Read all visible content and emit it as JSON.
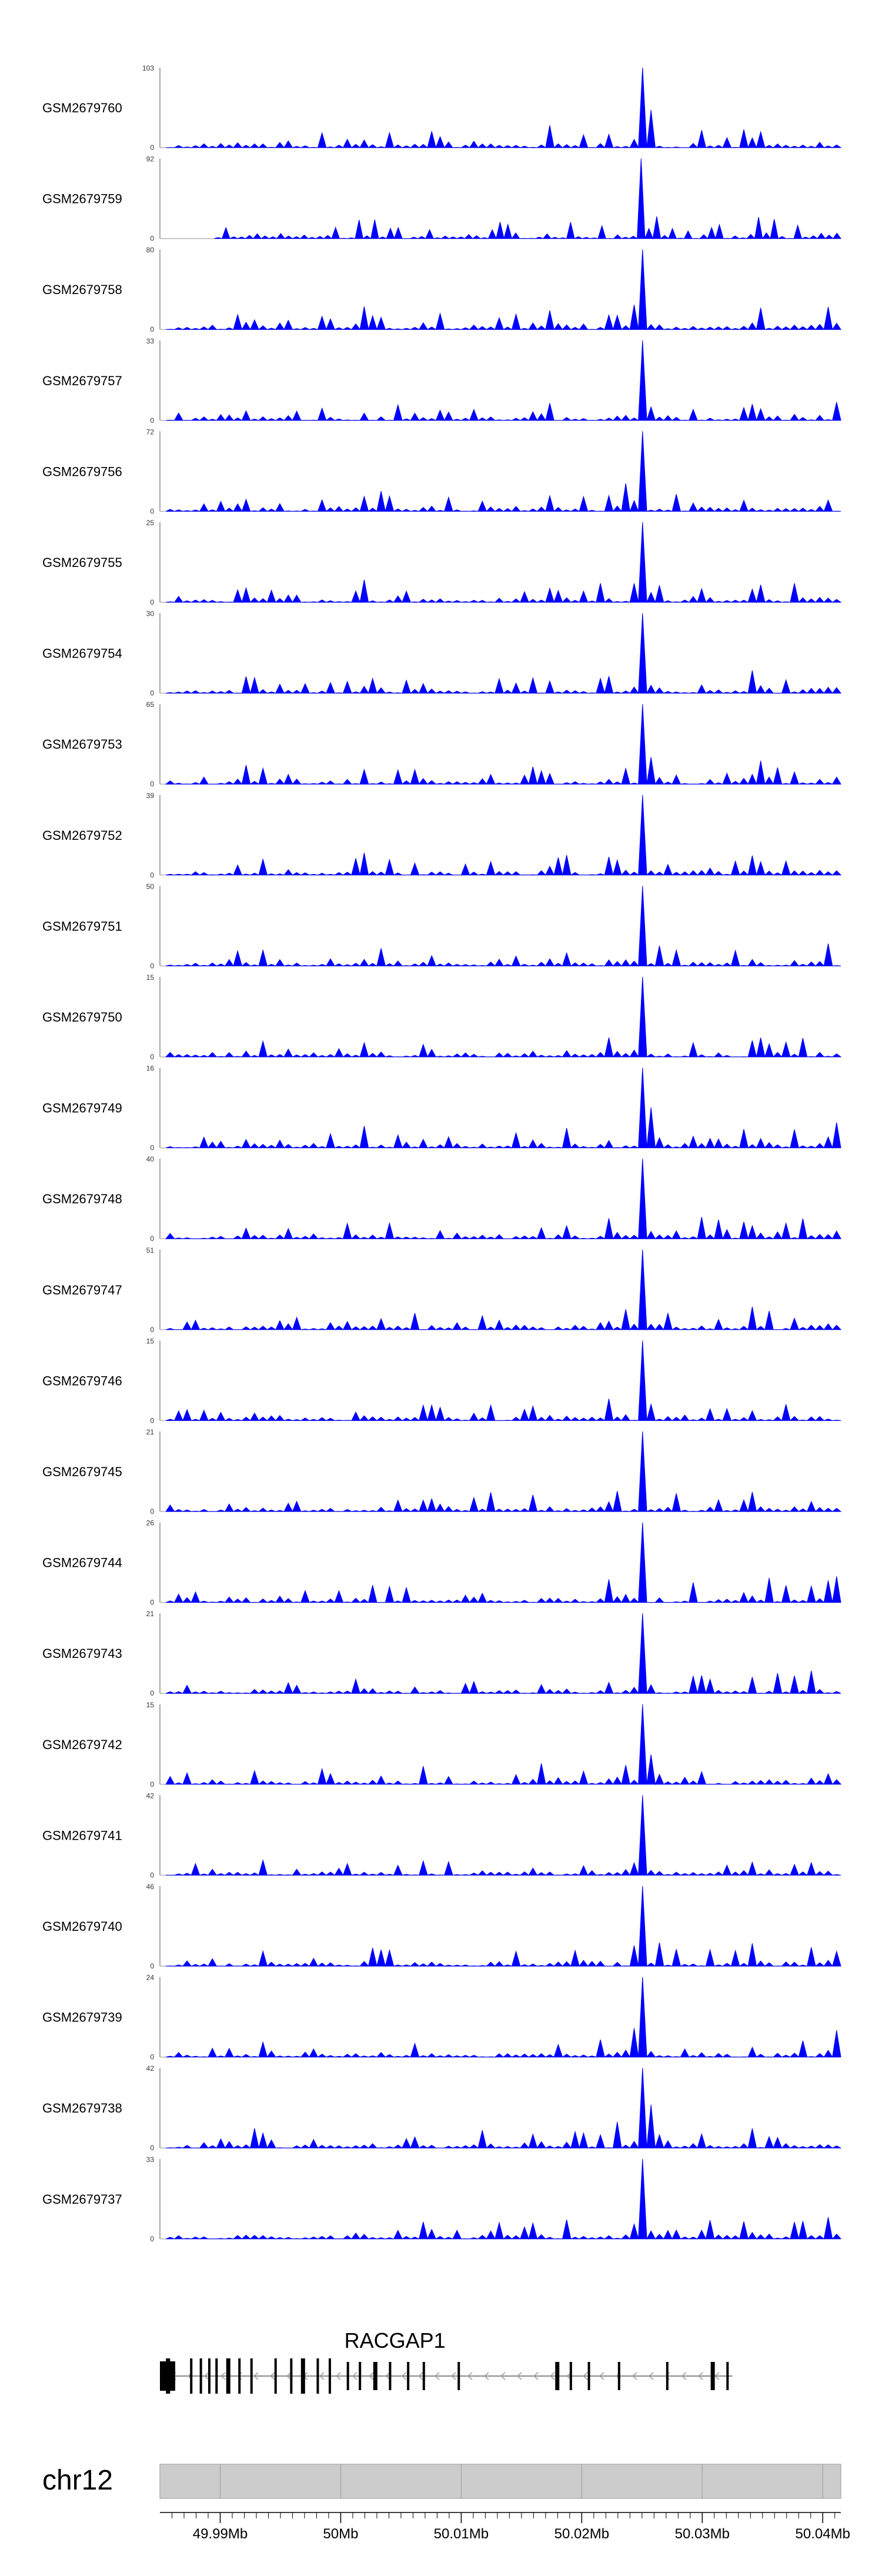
{
  "chart_data": {
    "type": "area",
    "title": "",
    "xlabel": "",
    "ylabel": "",
    "fill_color": "#0000ff",
    "genomic_region": {
      "chromosome": "chr12",
      "xlim": [
        49.985,
        50.0415
      ],
      "x_unit": "Mb",
      "x_ticks": [
        49.99,
        50.0,
        50.01,
        50.02,
        50.03,
        50.04
      ],
      "x_tick_labels": [
        "49.99Mb",
        "50Mb",
        "50.01Mb",
        "50.02Mb",
        "50.03Mb",
        "50.04Mb"
      ]
    },
    "gene": {
      "name": "RACGAP1",
      "start": 49.985,
      "end": 50.0325,
      "exons": [
        49.9855,
        49.9875,
        49.9883,
        49.989,
        49.9896,
        49.9905,
        49.9915,
        49.9925,
        49.9945,
        49.9958,
        49.9967,
        49.998,
        49.999,
        50.0005,
        50.0015,
        50.0027,
        50.004,
        50.0055,
        50.0068,
        50.0097,
        50.0178,
        50.019,
        50.0205,
        50.023,
        50.027,
        50.0307,
        50.032
      ]
    },
    "series": [
      {
        "name": "GSM2679760",
        "ymax": 103,
        "ytick_labels": [
          "103",
          "0"
        ]
      },
      {
        "name": "GSM2679759",
        "ymax": 92,
        "ytick_labels": [
          "92",
          "0"
        ]
      },
      {
        "name": "GSM2679758",
        "ymax": 80,
        "ytick_labels": [
          "80",
          "0"
        ]
      },
      {
        "name": "GSM2679757",
        "ymax": 33,
        "ytick_labels": [
          "33",
          "0"
        ]
      },
      {
        "name": "GSM2679756",
        "ymax": 72,
        "ytick_labels": [
          "72",
          "0"
        ]
      },
      {
        "name": "GSM2679755",
        "ymax": 25,
        "ytick_labels": [
          "25",
          "0"
        ]
      },
      {
        "name": "GSM2679754",
        "ymax": 30,
        "ytick_labels": [
          "30",
          "0"
        ]
      },
      {
        "name": "GSM2679753",
        "ymax": 65,
        "ytick_labels": [
          "65",
          "0"
        ]
      },
      {
        "name": "GSM2679752",
        "ymax": 39,
        "ytick_labels": [
          "39",
          "0"
        ]
      },
      {
        "name": "GSM2679751",
        "ymax": 50,
        "ytick_labels": [
          "50",
          "0"
        ]
      },
      {
        "name": "GSM2679750",
        "ymax": 15,
        "ytick_labels": [
          "15",
          "0"
        ]
      },
      {
        "name": "GSM2679749",
        "ymax": 16,
        "ytick_labels": [
          "16",
          "0"
        ]
      },
      {
        "name": "GSM2679748",
        "ymax": 40,
        "ytick_labels": [
          "40",
          "0"
        ]
      },
      {
        "name": "GSM2679747",
        "ymax": 51,
        "ytick_labels": [
          "51",
          "0"
        ]
      },
      {
        "name": "GSM2679746",
        "ymax": 15,
        "ytick_labels": [
          "15",
          "0"
        ]
      },
      {
        "name": "GSM2679745",
        "ymax": 21,
        "ytick_labels": [
          "21",
          "0"
        ]
      },
      {
        "name": "GSM2679744",
        "ymax": 26,
        "ytick_labels": [
          "26",
          "0"
        ]
      },
      {
        "name": "GSM2679743",
        "ymax": 21,
        "ytick_labels": [
          "21",
          "0"
        ]
      },
      {
        "name": "GSM2679742",
        "ymax": 15,
        "ytick_labels": [
          "15",
          "0"
        ]
      },
      {
        "name": "GSM2679741",
        "ymax": 42,
        "ytick_labels": [
          "42",
          "0"
        ]
      },
      {
        "name": "GSM2679740",
        "ymax": 46,
        "ytick_labels": [
          "46",
          "0"
        ]
      },
      {
        "name": "GSM2679739",
        "ymax": 24,
        "ytick_labels": [
          "24",
          "0"
        ]
      },
      {
        "name": "GSM2679738",
        "ymax": 42,
        "ytick_labels": [
          "42",
          "0"
        ]
      },
      {
        "name": "GSM2679737",
        "ymax": 33,
        "ytick_labels": [
          "33",
          "0"
        ]
      }
    ],
    "track_profile": {
      "description_unit": "coverage relative to each track maximum, sampled along genomic x (Mb)",
      "peak_position": 50.025,
      "x": [
        49.9855,
        49.9875,
        49.99,
        49.9925,
        49.995,
        49.9975,
        50.0,
        50.0025,
        50.005,
        50.0075,
        50.01,
        50.0125,
        50.015,
        50.0175,
        50.02,
        50.0225,
        50.0245,
        50.0252,
        50.026,
        50.0275,
        50.03,
        50.0325,
        50.035,
        50.0375,
        50.04,
        50.0415
      ],
      "relative_coverage": [
        0.08,
        0.15,
        0.12,
        0.25,
        0.1,
        0.2,
        0.14,
        0.3,
        0.18,
        0.22,
        0.12,
        0.24,
        0.16,
        0.28,
        0.18,
        0.3,
        0.35,
        1.0,
        0.3,
        0.2,
        0.26,
        0.18,
        0.3,
        0.22,
        0.28,
        0.35
      ]
    }
  }
}
